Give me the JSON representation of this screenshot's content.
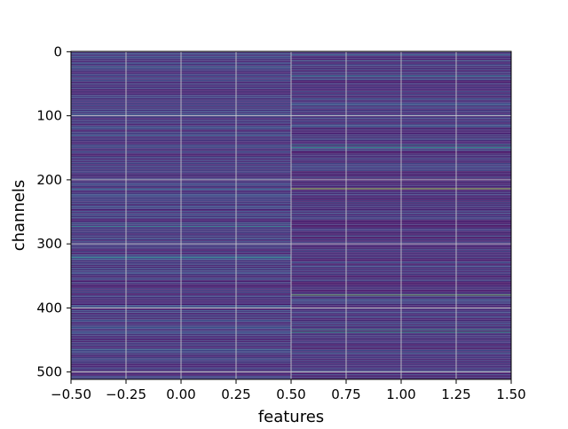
{
  "chart_data": {
    "type": "heatmap",
    "title": "",
    "xlabel": "features",
    "ylabel": "channels",
    "columns": [
      0,
      1
    ],
    "rows_count": 512,
    "xlim": [
      -0.5,
      1.5
    ],
    "ylim": [
      511.5,
      -0.5
    ],
    "y_axis_inverted": true,
    "colormap": "viridis",
    "grid": true,
    "x_ticks": [
      -0.5,
      -0.25,
      0.0,
      0.25,
      0.5,
      0.75,
      1.0,
      1.25,
      1.5
    ],
    "x_tick_labels": [
      "−0.50",
      "−0.25",
      "0.00",
      "0.25",
      "0.50",
      "0.75",
      "1.00",
      "1.25",
      "1.50"
    ],
    "y_ticks": [
      0,
      100,
      200,
      300,
      400,
      500
    ],
    "y_tick_labels": [
      "0",
      "100",
      "200",
      "300",
      "400",
      "500"
    ],
    "value_range": [
      0,
      1
    ],
    "background_level": {
      "col0": 0.08,
      "col1": 0.06
    },
    "highlights": {
      "col0": [
        {
          "row": 24,
          "value": 0.35
        },
        {
          "row": 97,
          "value": 0.3
        },
        {
          "row": 130,
          "value": 0.28
        },
        {
          "row": 157,
          "value": 0.25
        },
        {
          "row": 214,
          "value": 0.32
        },
        {
          "row": 268,
          "value": 0.38
        },
        {
          "row": 273,
          "value": 0.45
        },
        {
          "row": 321,
          "value": 0.5
        },
        {
          "row": 340,
          "value": 0.26
        },
        {
          "row": 397,
          "value": 0.3
        },
        {
          "row": 430,
          "value": 0.28
        },
        {
          "row": 465,
          "value": 0.32
        }
      ],
      "col1": [
        {
          "row": 4,
          "value": 0.35
        },
        {
          "row": 14,
          "value": 0.32
        },
        {
          "row": 38,
          "value": 0.42
        },
        {
          "row": 83,
          "value": 0.3
        },
        {
          "row": 116,
          "value": 0.28
        },
        {
          "row": 146,
          "value": 0.5
        },
        {
          "row": 150,
          "value": 0.55
        },
        {
          "row": 214,
          "value": 0.88
        },
        {
          "row": 236,
          "value": 0.3
        },
        {
          "row": 252,
          "value": 0.28
        },
        {
          "row": 380,
          "value": 0.78
        },
        {
          "row": 434,
          "value": 0.55
        },
        {
          "row": 438,
          "value": 0.6
        },
        {
          "row": 470,
          "value": 0.3
        },
        {
          "row": 499,
          "value": 0.32
        }
      ]
    }
  }
}
